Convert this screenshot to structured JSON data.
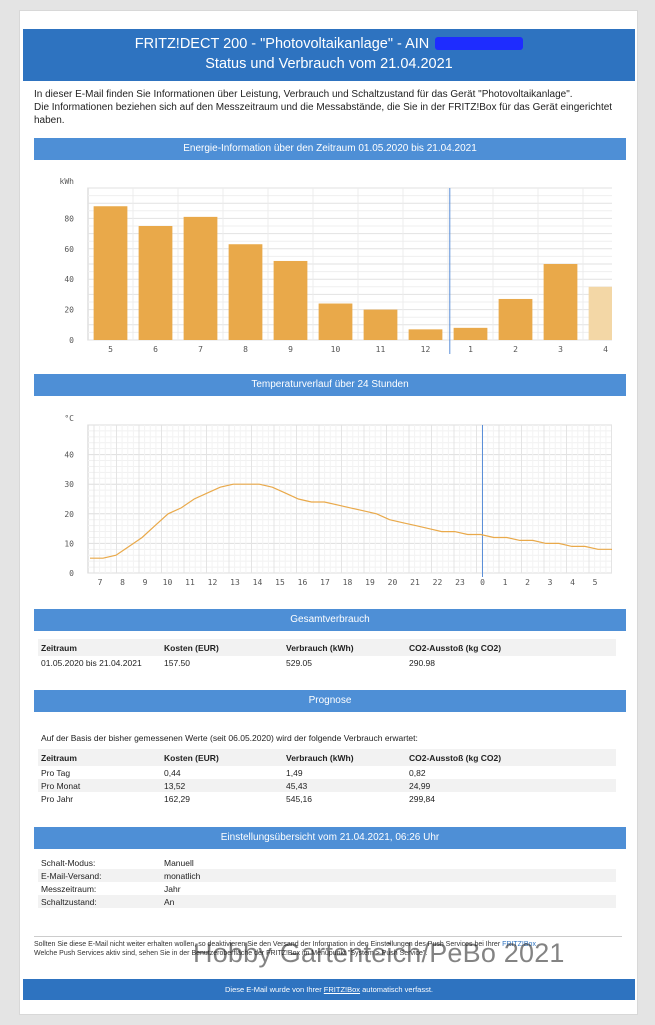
{
  "header": {
    "line1": "FRITZ!DECT 200 - \"Photovoltaikanlage\" - AIN",
    "line2": "Status und Verbrauch vom 21.04.2021"
  },
  "intro": {
    "line1": "In dieser E-Mail finden Sie Informationen über Leistung, Verbrauch und Schaltzustand für das Gerät \"Photovoltaikanlage\".",
    "line2": "Die Informationen beziehen sich auf den Messzeitraum und die Messabstände, die Sie in der FRITZ!Box für das Gerät eingerichtet haben."
  },
  "energy_section": {
    "title": "Energie-Information über den Zeitraum 01.05.2020 bis 21.04.2021"
  },
  "temp_section": {
    "title": "Temperaturverlauf über 24 Stunden"
  },
  "chart_data": [
    {
      "type": "bar",
      "unit": "kWh",
      "categories": [
        "5",
        "6",
        "7",
        "8",
        "9",
        "10",
        "11",
        "12",
        "1",
        "2",
        "3",
        "4"
      ],
      "values": [
        88,
        75,
        81,
        63,
        52,
        24,
        20,
        7,
        8,
        27,
        50,
        35
      ],
      "ylim": [
        0,
        100
      ],
      "yticks": [
        0,
        20,
        40,
        60,
        80
      ],
      "bar_color": "#e9a94a",
      "current_bar_color": "#f3d7a6",
      "divider_after_index": 7,
      "grid": true
    },
    {
      "type": "line",
      "unit": "°C",
      "x_labels": [
        "7",
        "8",
        "9",
        "10",
        "11",
        "12",
        "13",
        "14",
        "15",
        "16",
        "17",
        "18",
        "19",
        "20",
        "21",
        "22",
        "23",
        "0",
        "1",
        "2",
        "3",
        "4",
        "5",
        "6"
      ],
      "values": [
        5,
        5,
        6,
        9,
        12,
        16,
        20,
        22,
        25,
        27,
        29,
        30,
        30,
        30,
        29,
        27,
        25,
        24,
        24,
        23,
        22,
        21,
        20,
        18,
        17,
        16,
        15,
        14,
        14,
        13,
        13,
        12,
        12,
        11,
        11,
        10,
        10,
        9,
        9,
        8,
        8,
        7
      ],
      "ylim": [
        0,
        50
      ],
      "yticks": [
        0,
        10,
        20,
        30,
        40
      ],
      "line_color": "#e9a94a",
      "divider_label": "0",
      "grid": true
    }
  ],
  "gesamt": {
    "title": "Gesamtverbrauch",
    "headers": [
      "Zeitraum",
      "Kosten (EUR)",
      "Verbrauch (kWh)",
      "CO2-Ausstoß (kg CO2)"
    ],
    "row": [
      "01.05.2020 bis 21.04.2021",
      "157.50",
      "529.05",
      "290.98"
    ]
  },
  "prognose": {
    "title": "Prognose",
    "text": "Auf der Basis der bisher gemessenen Werte (seit 06.05.2020) wird der folgende Verbrauch erwartet:",
    "headers": [
      "Zeitraum",
      "Kosten (EUR)",
      "Verbrauch (kWh)",
      "CO2-Ausstoß (kg CO2)"
    ],
    "rows": [
      [
        "Pro Tag",
        "0,44",
        "1,49",
        "0,82"
      ],
      [
        "Pro Monat",
        "13,52",
        "45,43",
        "24,99"
      ],
      [
        "Pro Jahr",
        "162,29",
        "545,16",
        "299,84"
      ]
    ]
  },
  "settings": {
    "title": "Einstellungsübersicht vom 21.04.2021, 06:26 Uhr",
    "rows": [
      [
        "Schalt-Modus:",
        "Manuell"
      ],
      [
        "E-Mail-Versand:",
        "monatlich"
      ],
      [
        "Messzeitraum:",
        "Jahr"
      ],
      [
        "Schaltzustand:",
        "An"
      ]
    ]
  },
  "footer": {
    "line1_a": "Sollten Sie diese E-Mail nicht weiter erhalten wollen, so deaktivieren Sie den Versand der Information in den Einstellungen des Push Services bei Ihrer",
    "line1_link": "FRITZ!Box",
    "line2": "Welche Push Services aktiv sind, sehen Sie in der Benutzeroberfläche der FRITZ!Box im Menüpunkt \"System > Push Service\".",
    "bar_a": "Diese E-Mail wurde von Ihrer",
    "bar_link": "FRITZ!Box",
    "bar_b": "automatisch verfasst."
  },
  "watermark": "Hobby Gartenteich/PeBo 2021"
}
